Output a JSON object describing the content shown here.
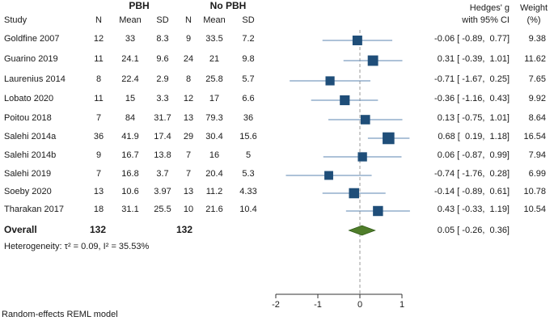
{
  "header": {
    "group1": "PBH",
    "group2": "No PBH",
    "study": "Study",
    "n": "N",
    "mean": "Mean",
    "sd": "SD",
    "effect_line1": "Hedges' g",
    "effect_line2": "with 95% CI",
    "weight_line1": "Weight",
    "weight_line2": "(%)"
  },
  "studies": [
    {
      "study": "Goldfine 2007",
      "n1": "12",
      "mean1": "33",
      "sd1": "8.3",
      "n2": "9",
      "mean2": "33.5",
      "sd2": "7.2",
      "ci_text": "-0.06 [ -0.89,  0.77]",
      "weight": "9.38"
    },
    {
      "study": "Guarino 2019",
      "n1": "11",
      "mean1": "24.1",
      "sd1": "9.6",
      "n2": "24",
      "mean2": "21",
      "sd2": "9.8",
      "ci_text": "0.31 [ -0.39,  1.01]",
      "weight": "11.62"
    },
    {
      "study": "Laurenius 2014",
      "n1": "8",
      "mean1": "22.4",
      "sd1": "2.9",
      "n2": "8",
      "mean2": "25.8",
      "sd2": "5.7",
      "ci_text": "-0.71 [ -1.67,  0.25]",
      "weight": "7.65"
    },
    {
      "study": "Lobato 2020",
      "n1": "11",
      "mean1": "15",
      "sd1": "3.3",
      "n2": "12",
      "mean2": "17",
      "sd2": "6.6",
      "ci_text": "-0.36 [ -1.16,  0.43]",
      "weight": "9.92"
    },
    {
      "study": "Poitou 2018",
      "n1": "7",
      "mean1": "84",
      "sd1": "31.7",
      "n2": "13",
      "mean2": "79.3",
      "sd2": "36",
      "ci_text": "0.13 [ -0.75,  1.01]",
      "weight": "8.64"
    },
    {
      "study": "Salehi 2014a",
      "n1": "36",
      "mean1": "41.9",
      "sd1": "17.4",
      "n2": "29",
      "mean2": "30.4",
      "sd2": "15.6",
      "ci_text": "0.68 [  0.19,  1.18]",
      "weight": "16.54"
    },
    {
      "study": "Salehi 2014b",
      "n1": "9",
      "mean1": "16.7",
      "sd1": "13.8",
      "n2": "7",
      "mean2": "16",
      "sd2": "5",
      "ci_text": "0.06 [ -0.87,  0.99]",
      "weight": "7.94"
    },
    {
      "study": "Salehi 2019",
      "n1": "7",
      "mean1": "16.8",
      "sd1": "3.7",
      "n2": "7",
      "mean2": "20.4",
      "sd2": "5.3",
      "ci_text": "-0.74 [ -1.76,  0.28]",
      "weight": "6.99"
    },
    {
      "study": "Soeby 2020",
      "n1": "13",
      "mean1": "10.6",
      "sd1": "3.97",
      "n2": "13",
      "mean2": "11.2",
      "sd2": "4.33",
      "ci_text": "-0.14 [ -0.89,  0.61]",
      "weight": "10.78"
    },
    {
      "study": "Tharakan 2017",
      "n1": "18",
      "mean1": "31.1",
      "sd1": "25.5",
      "n2": "10",
      "mean2": "21.6",
      "sd2": "10.4",
      "ci_text": "0.43 [ -0.33,  1.19]",
      "weight": "10.54"
    }
  ],
  "overall": {
    "label": "Overall",
    "n1": "132",
    "n2": "132",
    "ci_text": "0.05 [ -0.26,  0.36]"
  },
  "heterogeneity": "Heterogeneity: τ² = 0.09, I² = 35.53%",
  "footnote": "Random-effects REML model",
  "chart_data": {
    "type": "forest",
    "xlim": [
      -2,
      1
    ],
    "ticks": [
      -2,
      -1,
      0,
      1
    ],
    "tick_labels": [
      "-2",
      "-1",
      "0",
      "1"
    ],
    "reference_line": 0,
    "studies": [
      {
        "name": "Goldfine 2007",
        "g": -0.06,
        "lo": -0.89,
        "hi": 0.77,
        "weight": 9.38
      },
      {
        "name": "Guarino 2019",
        "g": 0.31,
        "lo": -0.39,
        "hi": 1.01,
        "weight": 11.62
      },
      {
        "name": "Laurenius 2014",
        "g": -0.71,
        "lo": -1.67,
        "hi": 0.25,
        "weight": 7.65
      },
      {
        "name": "Lobato 2020",
        "g": -0.36,
        "lo": -1.16,
        "hi": 0.43,
        "weight": 9.92
      },
      {
        "name": "Poitou 2018",
        "g": 0.13,
        "lo": -0.75,
        "hi": 1.01,
        "weight": 8.64
      },
      {
        "name": "Salehi 2014a",
        "g": 0.68,
        "lo": 0.19,
        "hi": 1.18,
        "weight": 16.54
      },
      {
        "name": "Salehi 2014b",
        "g": 0.06,
        "lo": -0.87,
        "hi": 0.99,
        "weight": 7.94
      },
      {
        "name": "Salehi 2019",
        "g": -0.74,
        "lo": -1.76,
        "hi": 0.28,
        "weight": 6.99
      },
      {
        "name": "Soeby 2020",
        "g": -0.14,
        "lo": -0.89,
        "hi": 0.61,
        "weight": 10.78
      },
      {
        "name": "Tharakan 2017",
        "g": 0.43,
        "lo": -0.33,
        "hi": 1.19,
        "weight": 10.54
      }
    ],
    "overall": {
      "g": 0.05,
      "lo": -0.26,
      "hi": 0.36
    },
    "colors": {
      "square": "#1f4e79",
      "ci_line": "#5b86b0",
      "diamond": "#4f7d2a",
      "diamond_edge": "#2f5a17",
      "ref_line": "#9a9a9a",
      "axis": "#333333"
    }
  }
}
